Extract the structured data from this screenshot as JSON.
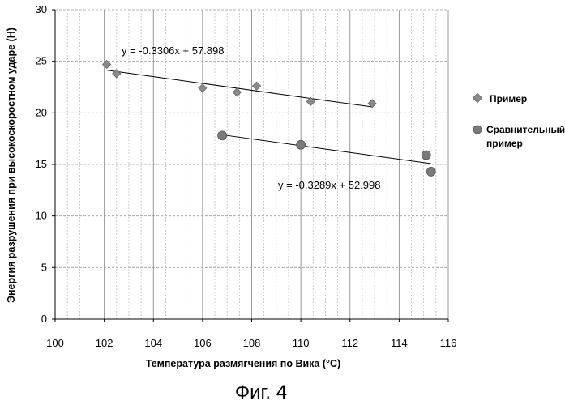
{
  "chart_data": {
    "type": "scatter",
    "title": "",
    "xlabel": "Температура размягчения по Вика (°С)",
    "ylabel": "Энергия разрушения при высокоскоростном ударе (Н)",
    "xlim": [
      100,
      116
    ],
    "ylim": [
      0,
      30
    ],
    "xticks": [
      "100",
      "102",
      "104",
      "106",
      "108",
      "110",
      "112",
      "114",
      "116"
    ],
    "yticks": [
      "0",
      "5",
      "10",
      "15",
      "20",
      "25",
      "30"
    ],
    "grid": true,
    "legend_position": "right",
    "series": [
      {
        "name": "Пример",
        "marker": "diamond",
        "color": "#8a8a8a",
        "x": [
          102.1,
          102.5,
          106.0,
          107.4,
          108.2,
          110.4,
          112.9
        ],
        "y": [
          24.7,
          23.8,
          22.4,
          22.0,
          22.6,
          21.1,
          20.9
        ],
        "trendline": {
          "slope": -0.3306,
          "intercept": 57.898,
          "x_range": [
            102.1,
            112.9
          ],
          "label": "y = -0.3306x + 57.898"
        }
      },
      {
        "name": "Сравнительный пример",
        "marker": "circle",
        "color": "#7a7a7a",
        "x": [
          106.8,
          110.0,
          115.1,
          115.3
        ],
        "y": [
          17.8,
          16.9,
          15.9,
          14.3
        ],
        "trendline": {
          "slope": -0.3289,
          "intercept": 52.998,
          "x_range": [
            106.8,
            115.3
          ],
          "label": "y = -0.3289x + 52.998"
        }
      }
    ],
    "legend": [
      {
        "label": "Пример"
      },
      {
        "label_line1": "Сравнительный",
        "label_line2": "пример"
      }
    ]
  },
  "caption": "Фиг. 4"
}
